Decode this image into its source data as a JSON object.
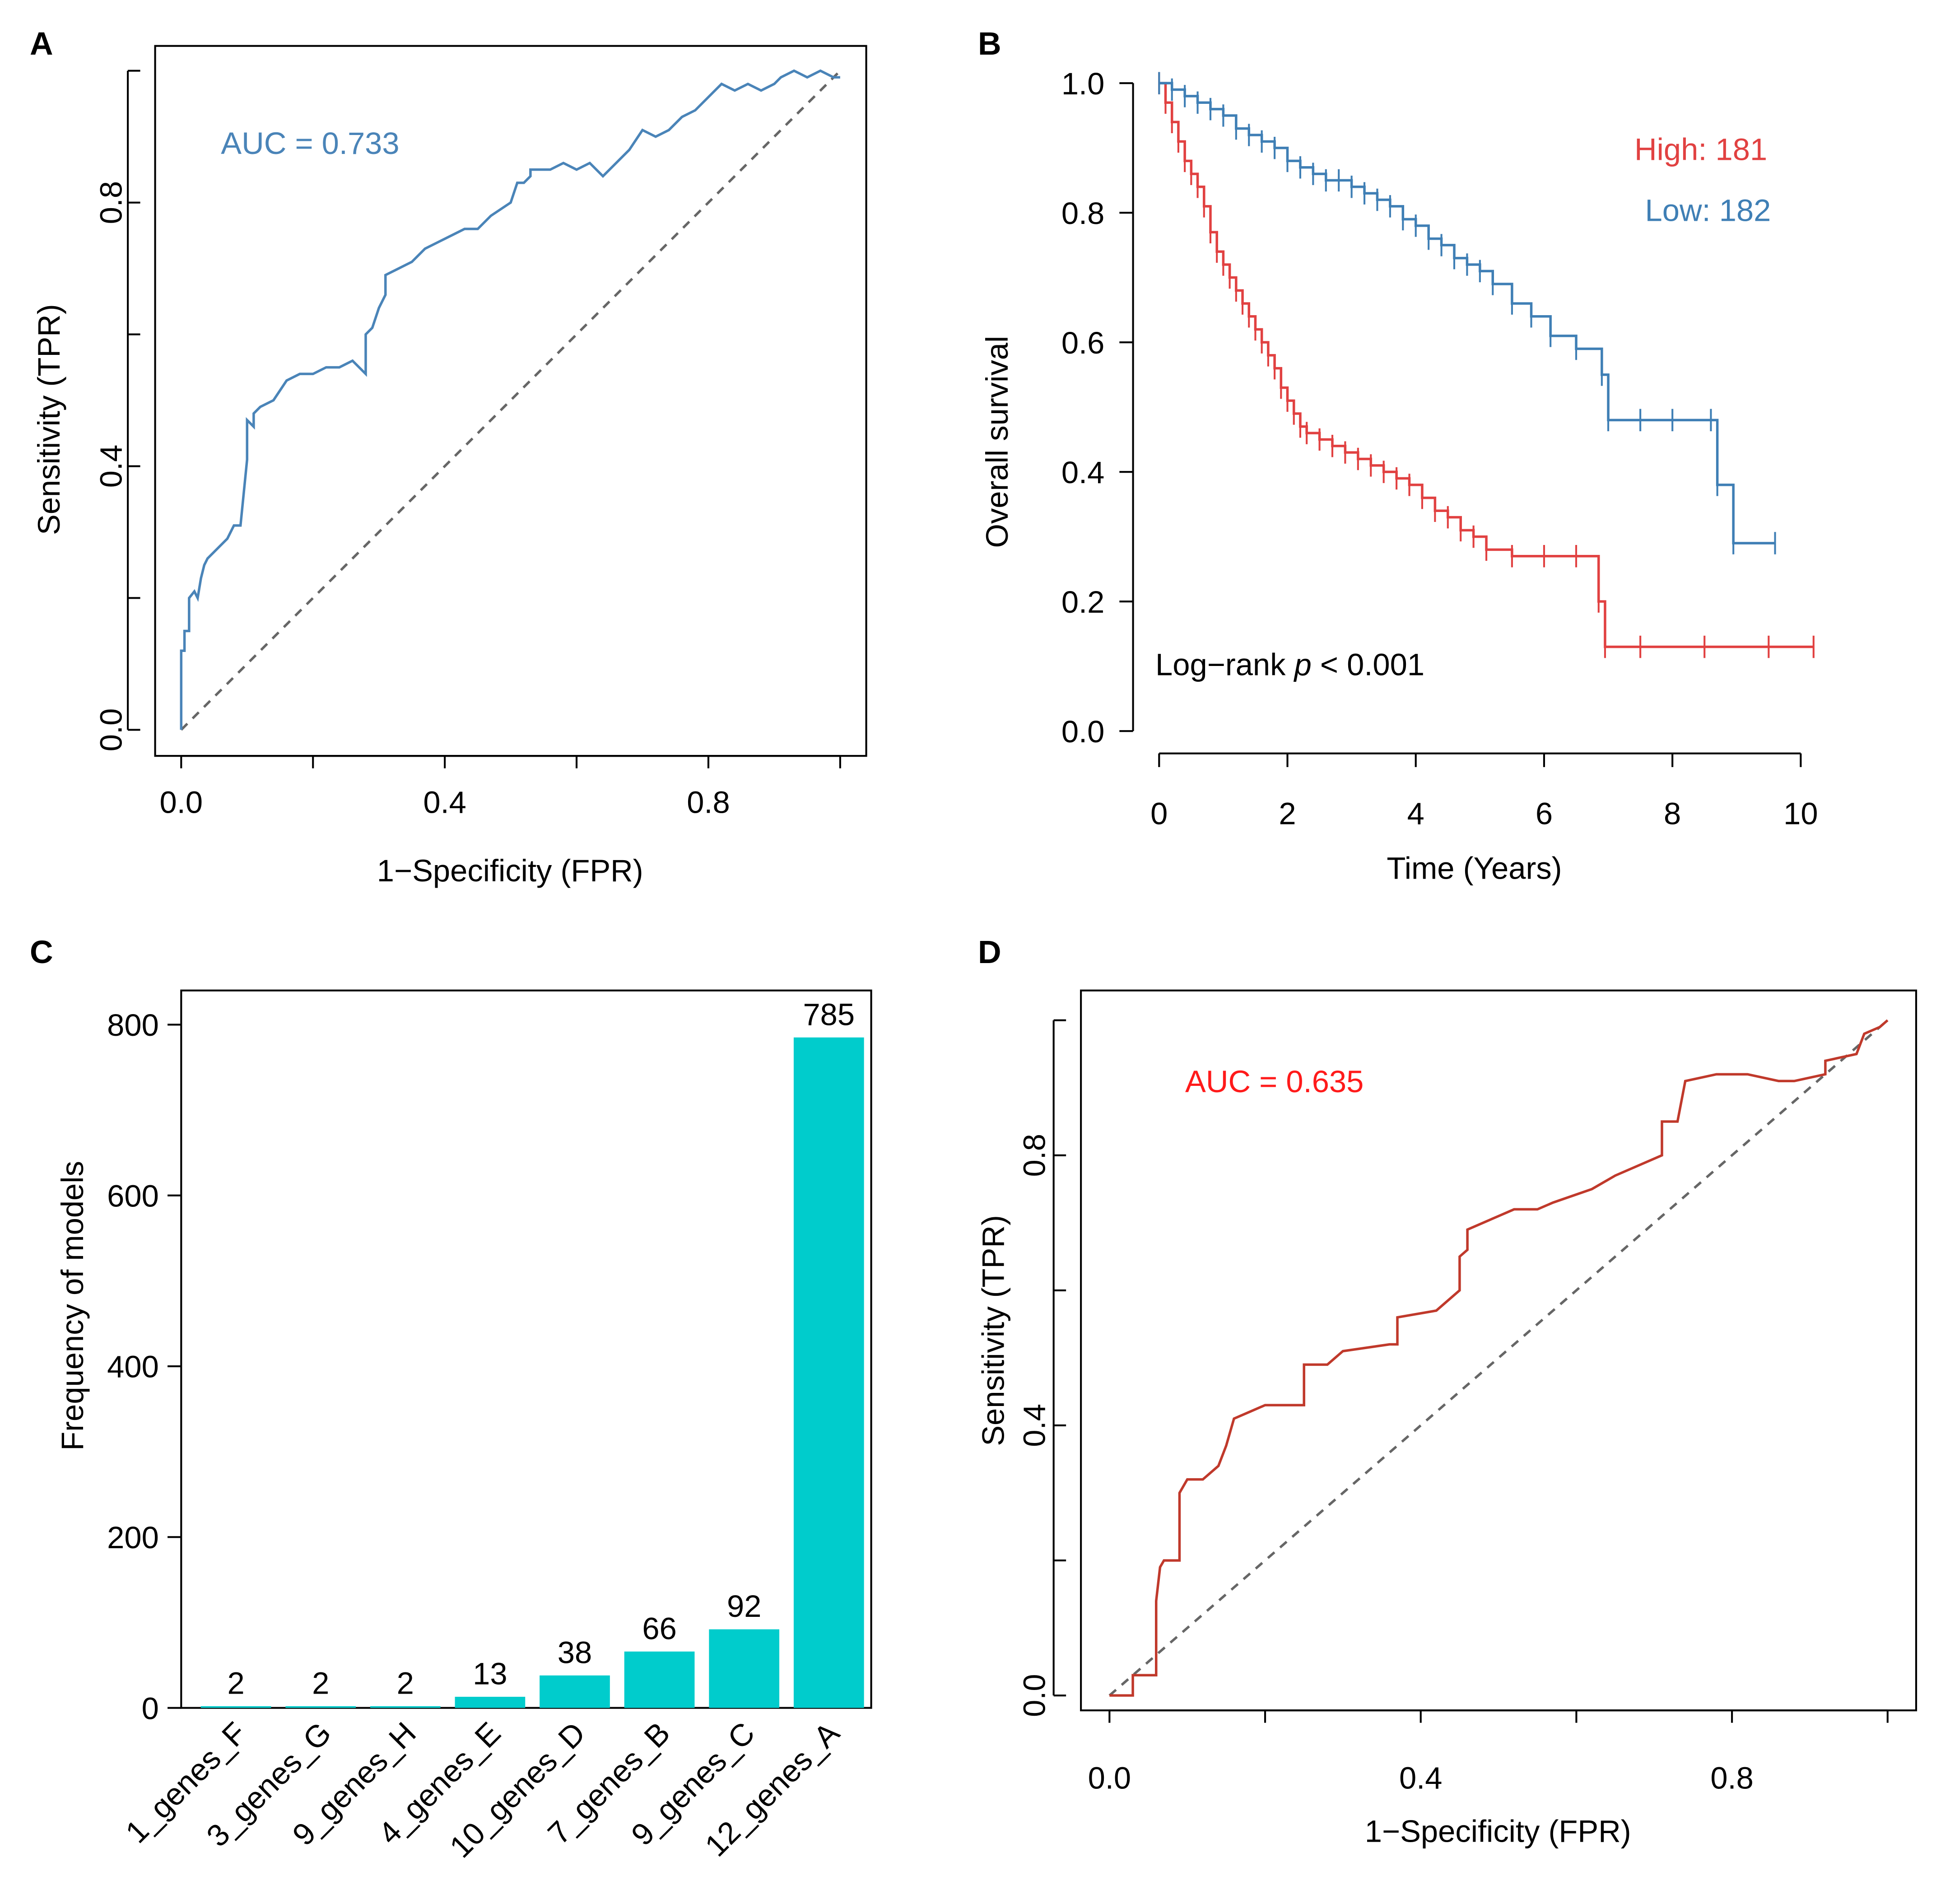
{
  "colors": {
    "roc_blue": "#4a84b8",
    "survival_red": "#e14141",
    "survival_blue": "#3f7fb5",
    "bar_cyan": "#00cccc",
    "roc_red": "#c0392b",
    "auc_red": "#ff1a1a",
    "diag": "#666666",
    "axis": "#000000"
  },
  "panels": {
    "A": {
      "label": "A"
    },
    "B": {
      "label": "B"
    },
    "C": {
      "label": "C"
    },
    "D": {
      "label": "D"
    }
  },
  "chart_data": [
    {
      "panel": "A",
      "type": "line",
      "subtype": "roc",
      "xlabel": "1−Specificity (FPR)",
      "ylabel": "Sensitivity (TPR)",
      "xlim": [
        0,
        1
      ],
      "ylim": [
        0,
        1
      ],
      "xticks": [
        0.0,
        0.2,
        0.4,
        0.6,
        0.8,
        1.0
      ],
      "xticklabels": [
        "0.0",
        "",
        "0.4",
        "",
        "0.8",
        ""
      ],
      "yticks": [
        0.0,
        0.2,
        0.4,
        0.6,
        0.8,
        1.0
      ],
      "yticklabels": [
        "0.0",
        "",
        "0.4",
        "",
        "0.8",
        ""
      ],
      "annotation": "AUC = 0.733",
      "reference_line": [
        [
          0,
          0
        ],
        [
          1,
          1
        ]
      ],
      "series": [
        {
          "name": "ROC",
          "color": "#4a84b8",
          "x": [
            0.0,
            0.0,
            0.005,
            0.005,
            0.012,
            0.012,
            0.02,
            0.025,
            0.03,
            0.035,
            0.04,
            0.05,
            0.06,
            0.07,
            0.08,
            0.09,
            0.1,
            0.1,
            0.11,
            0.11,
            0.12,
            0.14,
            0.16,
            0.18,
            0.2,
            0.22,
            0.24,
            0.26,
            0.28,
            0.28,
            0.29,
            0.3,
            0.31,
            0.31,
            0.33,
            0.35,
            0.37,
            0.39,
            0.41,
            0.43,
            0.45,
            0.47,
            0.5,
            0.51,
            0.52,
            0.53,
            0.53,
            0.56,
            0.58,
            0.6,
            0.62,
            0.64,
            0.66,
            0.68,
            0.7,
            0.72,
            0.74,
            0.76,
            0.78,
            0.8,
            0.81,
            0.82,
            0.84,
            0.86,
            0.88,
            0.9,
            0.91,
            0.93,
            0.95,
            0.97,
            0.99,
            1.0
          ],
          "y": [
            0.0,
            0.12,
            0.12,
            0.15,
            0.15,
            0.2,
            0.21,
            0.2,
            0.23,
            0.25,
            0.26,
            0.27,
            0.28,
            0.29,
            0.31,
            0.31,
            0.41,
            0.47,
            0.46,
            0.48,
            0.49,
            0.5,
            0.53,
            0.54,
            0.54,
            0.55,
            0.55,
            0.56,
            0.54,
            0.6,
            0.61,
            0.64,
            0.66,
            0.69,
            0.7,
            0.71,
            0.73,
            0.74,
            0.75,
            0.76,
            0.76,
            0.78,
            0.8,
            0.83,
            0.83,
            0.84,
            0.85,
            0.85,
            0.86,
            0.85,
            0.86,
            0.84,
            0.86,
            0.88,
            0.91,
            0.9,
            0.91,
            0.93,
            0.94,
            0.96,
            0.97,
            0.98,
            0.97,
            0.98,
            0.97,
            0.98,
            0.99,
            1.0,
            0.99,
            1.0,
            0.99,
            0.99
          ]
        }
      ]
    },
    {
      "panel": "B",
      "type": "line",
      "subtype": "kaplan-meier",
      "xlabel": "Time (Years)",
      "ylabel": "Overall survival",
      "xlim": [
        0,
        10.5
      ],
      "ylim": [
        0,
        1
      ],
      "xticks": [
        0,
        2,
        4,
        6,
        8,
        10
      ],
      "xticklabels": [
        "0",
        "2",
        "4",
        "6",
        "8",
        "10"
      ],
      "yticks": [
        0.0,
        0.2,
        0.4,
        0.6,
        0.8,
        1.0
      ],
      "yticklabels": [
        "0.0",
        "0.2",
        "0.4",
        "0.6",
        "0.8",
        "1.0"
      ],
      "annotation_prefix": "Log−rank ",
      "annotation_italic": "p",
      "annotation_suffix": " < 0.001",
      "legend": [
        {
          "text": "High: 181",
          "color": "#e14141"
        },
        {
          "text": "Low: 182",
          "color": "#3f7fb5"
        }
      ],
      "series": [
        {
          "name": "High",
          "color": "#e14141",
          "x": [
            0.0,
            0.1,
            0.2,
            0.3,
            0.4,
            0.5,
            0.6,
            0.7,
            0.8,
            0.9,
            1.0,
            1.1,
            1.2,
            1.3,
            1.4,
            1.5,
            1.6,
            1.7,
            1.8,
            1.9,
            2.0,
            2.1,
            2.2,
            2.3,
            2.5,
            2.7,
            2.9,
            3.1,
            3.3,
            3.5,
            3.7,
            3.9,
            4.1,
            4.3,
            4.5,
            4.7,
            4.9,
            5.1,
            5.5,
            6.0,
            6.5,
            6.85,
            6.95,
            7.5,
            8.5,
            9.5,
            10.2
          ],
          "y": [
            1.0,
            0.97,
            0.94,
            0.91,
            0.88,
            0.86,
            0.84,
            0.81,
            0.77,
            0.74,
            0.72,
            0.7,
            0.68,
            0.66,
            0.64,
            0.62,
            0.6,
            0.58,
            0.56,
            0.53,
            0.51,
            0.49,
            0.47,
            0.46,
            0.45,
            0.44,
            0.43,
            0.42,
            0.41,
            0.4,
            0.39,
            0.38,
            0.36,
            0.34,
            0.33,
            0.31,
            0.3,
            0.28,
            0.27,
            0.27,
            0.27,
            0.2,
            0.13,
            0.13,
            0.13,
            0.13,
            0.13
          ]
        },
        {
          "name": "Low",
          "color": "#3f7fb5",
          "x": [
            0.0,
            0.2,
            0.4,
            0.6,
            0.8,
            1.0,
            1.2,
            1.4,
            1.6,
            1.8,
            2.0,
            2.2,
            2.4,
            2.6,
            2.8,
            3.0,
            3.2,
            3.4,
            3.6,
            3.8,
            4.0,
            4.2,
            4.4,
            4.6,
            4.8,
            5.0,
            5.2,
            5.5,
            5.8,
            6.1,
            6.5,
            6.9,
            7.0,
            7.5,
            8.0,
            8.6,
            8.7,
            8.95,
            9.6
          ],
          "y": [
            1.0,
            0.99,
            0.98,
            0.97,
            0.96,
            0.95,
            0.93,
            0.92,
            0.91,
            0.9,
            0.88,
            0.87,
            0.86,
            0.85,
            0.85,
            0.84,
            0.83,
            0.82,
            0.81,
            0.79,
            0.78,
            0.76,
            0.75,
            0.73,
            0.72,
            0.71,
            0.69,
            0.66,
            0.64,
            0.61,
            0.59,
            0.55,
            0.48,
            0.48,
            0.48,
            0.48,
            0.38,
            0.29,
            0.29
          ]
        }
      ]
    },
    {
      "panel": "C",
      "type": "bar",
      "xlabel": "",
      "ylabel": "Frequency of models",
      "ylim": [
        0,
        840
      ],
      "yticks": [
        0,
        200,
        400,
        600,
        800
      ],
      "yticklabels": [
        "0",
        "200",
        "400",
        "600",
        "800"
      ],
      "categories": [
        "1_genes_F",
        "3_genes_G",
        "9_genes_H",
        "4_genes_E",
        "10_genes_D",
        "7_genes_B",
        "9_genes_C",
        "12_genes_A"
      ],
      "values": [
        2,
        2,
        2,
        13,
        38,
        66,
        92,
        785
      ],
      "value_labels": [
        "2",
        "2",
        "2",
        "13",
        "38",
        "66",
        "92",
        "785"
      ],
      "color": "#00cccc"
    },
    {
      "panel": "D",
      "type": "line",
      "subtype": "roc",
      "xlabel": "1−Specificity (FPR)",
      "ylabel": "Sensitivity (TPR)",
      "xlim": [
        0,
        1
      ],
      "ylim": [
        0,
        1
      ],
      "xticks": [
        0.0,
        0.2,
        0.4,
        0.6,
        0.8,
        1.0
      ],
      "xticklabels": [
        "0.0",
        "",
        "0.4",
        "",
        "0.8",
        ""
      ],
      "yticks": [
        0.0,
        0.2,
        0.4,
        0.6,
        0.8,
        1.0
      ],
      "yticklabels": [
        "0.0",
        "",
        "0.4",
        "",
        "0.8",
        ""
      ],
      "annotation": "AUC = 0.635",
      "reference_line": [
        [
          0,
          0
        ],
        [
          1,
          1
        ]
      ],
      "series": [
        {
          "name": "ROC",
          "color": "#c0392b",
          "x": [
            0.0,
            0.03,
            0.03,
            0.06,
            0.06,
            0.065,
            0.07,
            0.09,
            0.09,
            0.1,
            0.12,
            0.14,
            0.15,
            0.16,
            0.18,
            0.2,
            0.25,
            0.25,
            0.28,
            0.3,
            0.36,
            0.37,
            0.37,
            0.42,
            0.45,
            0.45,
            0.46,
            0.46,
            0.5,
            0.52,
            0.55,
            0.57,
            0.62,
            0.65,
            0.69,
            0.71,
            0.71,
            0.73,
            0.74,
            0.78,
            0.82,
            0.86,
            0.88,
            0.92,
            0.92,
            0.96,
            0.97,
            0.99,
            1.0
          ],
          "y": [
            0.0,
            0.0,
            0.03,
            0.03,
            0.14,
            0.19,
            0.2,
            0.2,
            0.3,
            0.32,
            0.32,
            0.34,
            0.37,
            0.41,
            0.42,
            0.43,
            0.43,
            0.49,
            0.49,
            0.51,
            0.52,
            0.52,
            0.56,
            0.57,
            0.6,
            0.65,
            0.66,
            0.69,
            0.71,
            0.72,
            0.72,
            0.73,
            0.75,
            0.77,
            0.79,
            0.8,
            0.85,
            0.85,
            0.91,
            0.92,
            0.92,
            0.91,
            0.91,
            0.92,
            0.94,
            0.95,
            0.98,
            0.99,
            1.0
          ]
        }
      ]
    }
  ]
}
